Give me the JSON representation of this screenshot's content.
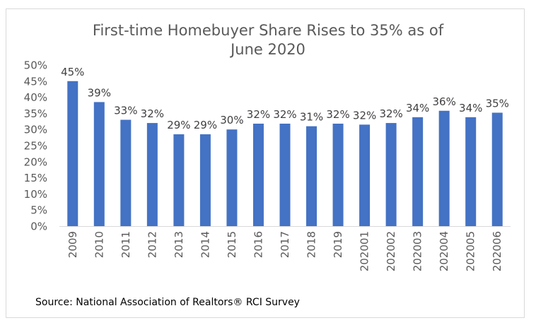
{
  "chart_data": {
    "type": "bar",
    "title_lines": [
      "First-time Homebuyer Share Rises to 35% as of",
      "June 2020"
    ],
    "categories": [
      "2009",
      "2010",
      "2011",
      "2012",
      "2013",
      "2014",
      "2015",
      "2016",
      "2017",
      "2018",
      "2019",
      "202001",
      "202002",
      "202003",
      "202004",
      "202005",
      "202006"
    ],
    "values": [
      45,
      38.5,
      33,
      32,
      28.5,
      28.5,
      30,
      31.8,
      31.8,
      31,
      31.8,
      31.5,
      32,
      33.8,
      35.8,
      33.8,
      35.2
    ],
    "data_labels": [
      "45%",
      "39%",
      "33%",
      "32%",
      "29%",
      "29%",
      "30%",
      "32%",
      "32%",
      "31%",
      "32%",
      "32%",
      "32%",
      "34%",
      "36%",
      "34%",
      "35%"
    ],
    "y_ticks": [
      "0%",
      "5%",
      "10%",
      "15%",
      "20%",
      "25%",
      "30%",
      "35%",
      "40%",
      "45%",
      "50%"
    ],
    "ylim": [
      0,
      50
    ],
    "grid": false,
    "legend": "none",
    "bar_color": "#4472C4",
    "source": "Source: National Association of Realtors® RCI Survey"
  }
}
